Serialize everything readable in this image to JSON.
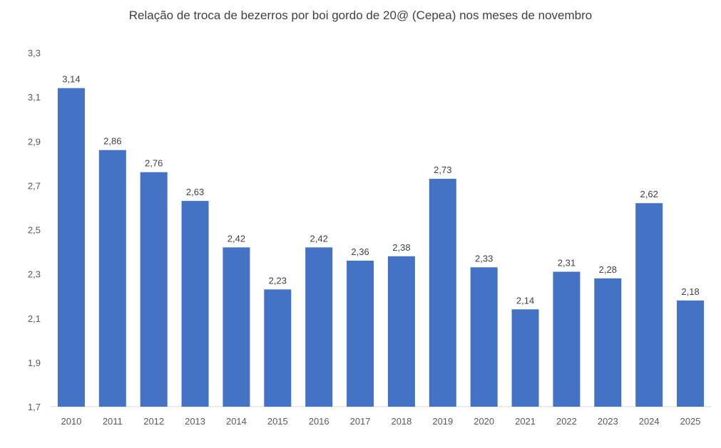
{
  "chart_data": {
    "type": "bar",
    "title": "Relação de troca de bezerros por boi gordo de 20@ (Cepea) nos meses de novembro",
    "xlabel": "",
    "ylabel": "",
    "categories": [
      "2010",
      "2011",
      "2012",
      "2013",
      "2014",
      "2015",
      "2016",
      "2017",
      "2018",
      "2019",
      "2020",
      "2021",
      "2022",
      "2023",
      "2024",
      "2025"
    ],
    "values": [
      3.14,
      2.86,
      2.76,
      2.63,
      2.42,
      2.23,
      2.42,
      2.36,
      2.38,
      2.73,
      2.33,
      2.14,
      2.31,
      2.28,
      2.62,
      2.18
    ],
    "data_labels": [
      "3,14",
      "2,86",
      "2,76",
      "2,63",
      "2,42",
      "2,23",
      "2,42",
      "2,36",
      "2,38",
      "2,73",
      "2,33",
      "2,14",
      "2,31",
      "2,28",
      "2,62",
      "2,18"
    ],
    "ylim": [
      1.7,
      3.3
    ],
    "yticks": [
      "1,7",
      "1,9",
      "2,1",
      "2,3",
      "2,5",
      "2,7",
      "2,9",
      "3,1",
      "3,3"
    ],
    "grid": false,
    "legend": "none",
    "bar_color": "#4472C4"
  }
}
